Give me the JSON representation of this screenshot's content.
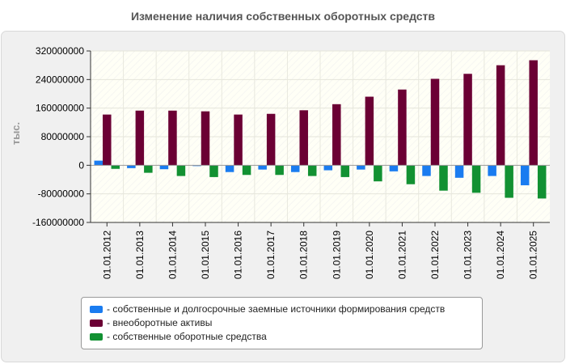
{
  "chart_data": {
    "type": "bar",
    "title": "Изменение наличия собственных оборотных средств",
    "xlabel": "",
    "ylabel": "тыс.",
    "ylim": [
      -160000000,
      320000000
    ],
    "yticks": [
      320000000,
      240000000,
      160000000,
      80000000,
      0,
      -80000000,
      -160000000
    ],
    "categories": [
      "01.01.2012",
      "01.01.2013",
      "01.01.2014",
      "01.01.2015",
      "01.01.2016",
      "01.01.2017",
      "01.01.2018",
      "01.01.2019",
      "01.01.2020",
      "01.01.2021",
      "01.01.2022",
      "01.01.2023",
      "01.01.2024",
      "01.01.2025"
    ],
    "series": [
      {
        "name": "собственные и долгосрочные заемные источники формирования средств",
        "color": "#1a7cf0",
        "values": [
          13000000,
          -8000000,
          -11000000,
          -2000000,
          -19000000,
          -12000000,
          -19000000,
          -14000000,
          -12000000,
          -17000000,
          -30000000,
          -35000000,
          -30000000,
          -56000000
        ]
      },
      {
        "name": "внеоборотные активы",
        "color": "#6b0034",
        "values": [
          142000000,
          153000000,
          153000000,
          151000000,
          142000000,
          144000000,
          154000000,
          171000000,
          192000000,
          212000000,
          242000000,
          256000000,
          280000000,
          294000000
        ]
      },
      {
        "name": "собственные оборотные средства",
        "color": "#129132",
        "values": [
          -10000000,
          -21000000,
          -30000000,
          -33000000,
          -27000000,
          -27000000,
          -30000000,
          -33000000,
          -45000000,
          -53000000,
          -71000000,
          -77000000,
          -91000000,
          -93000000
        ]
      }
    ],
    "legend_position": "bottom-center",
    "grid": true
  }
}
